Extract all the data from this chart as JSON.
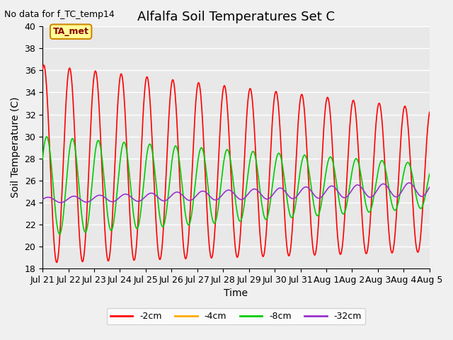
{
  "title": "Alfalfa Soil Temperatures Set C",
  "xlabel": "Time",
  "ylabel": "Soil Temperature (C)",
  "note": "No data for f_TC_temp14",
  "ylim": [
    18,
    40
  ],
  "yticks": [
    18,
    20,
    22,
    24,
    26,
    28,
    30,
    32,
    34,
    36,
    38,
    40
  ],
  "xtick_labels": [
    "Jul 21",
    "Jul 22",
    "Jul 23",
    "Jul 24",
    "Jul 25",
    "Jul 26",
    "Jul 27",
    "Jul 28",
    "Jul 29",
    "Jul 30",
    "Jul 31",
    "Aug 1",
    "Aug 2",
    "Aug 3",
    "Aug 4",
    "Aug 5"
  ],
  "legend_entries": [
    "-2cm",
    "-4cm",
    "-8cm",
    "-32cm"
  ],
  "legend_colors": [
    "#ff0000",
    "#ffaa00",
    "#00cc00",
    "#9933cc"
  ],
  "ta_met_label": "TA_met",
  "ta_met_box_color": "#ffff99",
  "ta_met_border_color": "#cc8800",
  "plot_bg_color": "#e8e8e8",
  "grid_color": "#ffffff",
  "series_2cm_color": "#ff0000",
  "series_4cm_color": "#ffaa00",
  "series_8cm_color": "#00cc00",
  "series_32cm_color": "#9933cc",
  "title_fontsize": 13,
  "axis_label_fontsize": 10,
  "tick_fontsize": 9,
  "note_fontsize": 9
}
